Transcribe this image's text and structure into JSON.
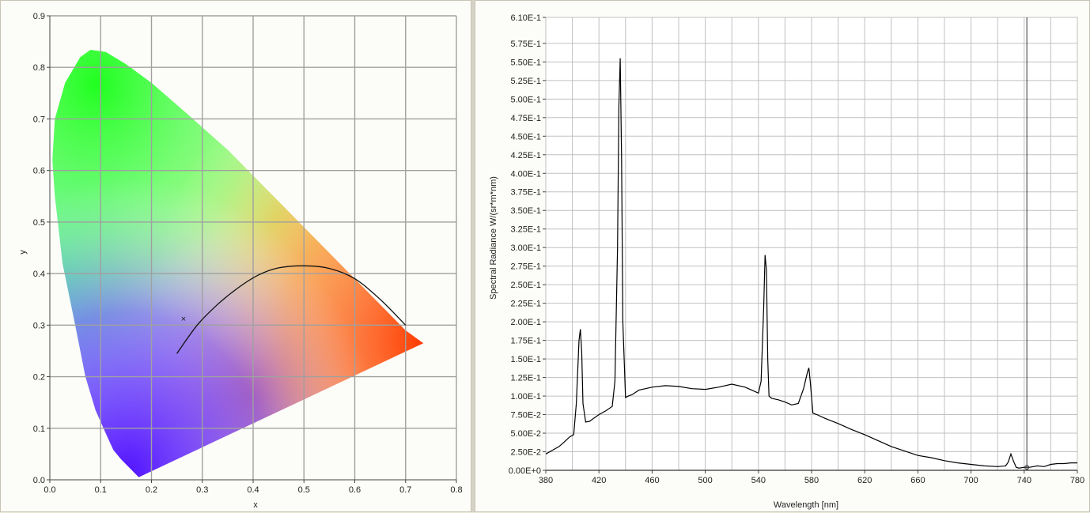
{
  "chart_data": [
    {
      "type": "scatter",
      "title": "",
      "xlabel": "x",
      "ylabel": "y",
      "xlim": [
        0.0,
        0.8
      ],
      "ylim": [
        0.0,
        0.9
      ],
      "x_ticks": [
        "0.0",
        "0.1",
        "0.2",
        "0.3",
        "0.4",
        "0.5",
        "0.6",
        "0.7",
        "0.8"
      ],
      "y_ticks": [
        "0.0",
        "0.1",
        "0.2",
        "0.3",
        "0.4",
        "0.5",
        "0.6",
        "0.7",
        "0.8",
        "0.9"
      ],
      "x_tick_values": [
        0,
        0.1,
        0.2,
        0.3,
        0.4,
        0.5,
        0.6,
        0.7,
        0.8
      ],
      "y_tick_values": [
        0,
        0.1,
        0.2,
        0.3,
        0.4,
        0.5,
        0.6,
        0.7,
        0.8,
        0.9
      ],
      "grid": true,
      "gamut_boundary": [
        [
          0.175,
          0.005
        ],
        [
          0.16,
          0.02
        ],
        [
          0.14,
          0.04
        ],
        [
          0.125,
          0.058
        ],
        [
          0.11,
          0.09
        ],
        [
          0.09,
          0.135
        ],
        [
          0.07,
          0.2
        ],
        [
          0.05,
          0.3
        ],
        [
          0.025,
          0.42
        ],
        [
          0.01,
          0.55
        ],
        [
          0.005,
          0.62
        ],
        [
          0.01,
          0.7
        ],
        [
          0.03,
          0.77
        ],
        [
          0.06,
          0.82
        ],
        [
          0.08,
          0.834
        ],
        [
          0.11,
          0.83
        ],
        [
          0.15,
          0.806
        ],
        [
          0.2,
          0.77
        ],
        [
          0.27,
          0.71
        ],
        [
          0.35,
          0.64
        ],
        [
          0.45,
          0.54
        ],
        [
          0.55,
          0.44
        ],
        [
          0.64,
          0.35
        ],
        [
          0.7,
          0.29
        ],
        [
          0.735,
          0.265
        ],
        [
          0.175,
          0.005
        ]
      ],
      "planckian_locus": [
        [
          0.25,
          0.245
        ],
        [
          0.29,
          0.3
        ],
        [
          0.33,
          0.34
        ],
        [
          0.37,
          0.372
        ],
        [
          0.41,
          0.397
        ],
        [
          0.45,
          0.411
        ],
        [
          0.5,
          0.415
        ],
        [
          0.55,
          0.41
        ],
        [
          0.6,
          0.39
        ],
        [
          0.65,
          0.35
        ],
        [
          0.7,
          0.3
        ]
      ],
      "white_point_marker": {
        "x": 0.263,
        "y": 0.313,
        "symbol": "×"
      },
      "colors": {
        "gamut_red": "#ff3a00",
        "gamut_green": "#20ff20",
        "gamut_blue": "#5010ff",
        "line": "#111111",
        "grid": "#a0a0a0"
      }
    },
    {
      "type": "line",
      "title": "",
      "xlabel": "Wavelength [nm]",
      "ylabel": "Spectral Radiance W/(sr*m*nm)",
      "xlim": [
        380,
        780
      ],
      "ylim": [
        0,
        0.61
      ],
      "x_ticks": [
        "380",
        "420",
        "460",
        "500",
        "540",
        "580",
        "620",
        "660",
        "700",
        "740",
        "780"
      ],
      "x_tick_values": [
        380,
        420,
        460,
        500,
        540,
        580,
        620,
        660,
        700,
        740,
        780
      ],
      "y_ticks": [
        "0.00E+0",
        "2.50E-2",
        "5.00E-2",
        "7.50E-2",
        "1.00E-1",
        "1.25E-1",
        "1.50E-1",
        "1.75E-1",
        "2.00E-1",
        "2.25E-1",
        "2.50E-1",
        "2.75E-1",
        "3.00E-1",
        "3.25E-1",
        "3.50E-1",
        "3.75E-1",
        "4.00E-1",
        "4.25E-1",
        "4.50E-1",
        "4.75E-1",
        "5.00E-1",
        "5.25E-1",
        "5.50E-1",
        "5.75E-1",
        "6.10E-1"
      ],
      "y_tick_values": [
        0,
        0.025,
        0.05,
        0.075,
        0.1,
        0.125,
        0.15,
        0.175,
        0.2,
        0.225,
        0.25,
        0.275,
        0.3,
        0.325,
        0.35,
        0.375,
        0.4,
        0.425,
        0.45,
        0.475,
        0.5,
        0.525,
        0.55,
        0.575,
        0.61
      ],
      "grid": true,
      "cursor_x": 742,
      "series": [
        {
          "x": [
            380,
            385,
            390,
            395,
            398,
            401,
            403,
            405,
            406,
            407,
            408,
            410,
            413,
            416,
            420,
            425,
            430,
            432,
            434,
            435,
            436,
            437,
            438,
            440,
            442,
            445,
            450,
            460,
            470,
            480,
            490,
            500,
            510,
            520,
            530,
            535,
            540,
            542,
            544,
            545,
            546,
            547,
            548,
            550,
            555,
            560,
            565,
            570,
            574,
            577,
            578,
            579,
            581,
            584,
            590,
            600,
            610,
            620,
            630,
            640,
            650,
            660,
            670,
            680,
            690,
            700,
            710,
            720,
            726,
            728,
            730,
            732,
            734,
            736,
            740,
            744,
            750,
            755,
            760,
            765,
            770,
            775,
            780
          ],
          "y": [
            0.022,
            0.027,
            0.032,
            0.04,
            0.045,
            0.048,
            0.09,
            0.175,
            0.19,
            0.16,
            0.09,
            0.065,
            0.066,
            0.07,
            0.075,
            0.08,
            0.086,
            0.12,
            0.3,
            0.49,
            0.555,
            0.42,
            0.2,
            0.098,
            0.1,
            0.102,
            0.108,
            0.112,
            0.114,
            0.113,
            0.11,
            0.109,
            0.112,
            0.116,
            0.112,
            0.108,
            0.104,
            0.12,
            0.22,
            0.29,
            0.27,
            0.15,
            0.1,
            0.097,
            0.095,
            0.092,
            0.088,
            0.09,
            0.11,
            0.133,
            0.138,
            0.12,
            0.077,
            0.075,
            0.07,
            0.063,
            0.055,
            0.048,
            0.04,
            0.032,
            0.026,
            0.02,
            0.017,
            0.013,
            0.01,
            0.008,
            0.006,
            0.005,
            0.006,
            0.011,
            0.022,
            0.012,
            0.004,
            0.003,
            0.004,
            0.004,
            0.006,
            0.005,
            0.008,
            0.009,
            0.009,
            0.01,
            0.01
          ]
        }
      ],
      "colors": {
        "line": "#000000",
        "grid": "#c0c0c0",
        "cursor": "#333333"
      }
    }
  ]
}
